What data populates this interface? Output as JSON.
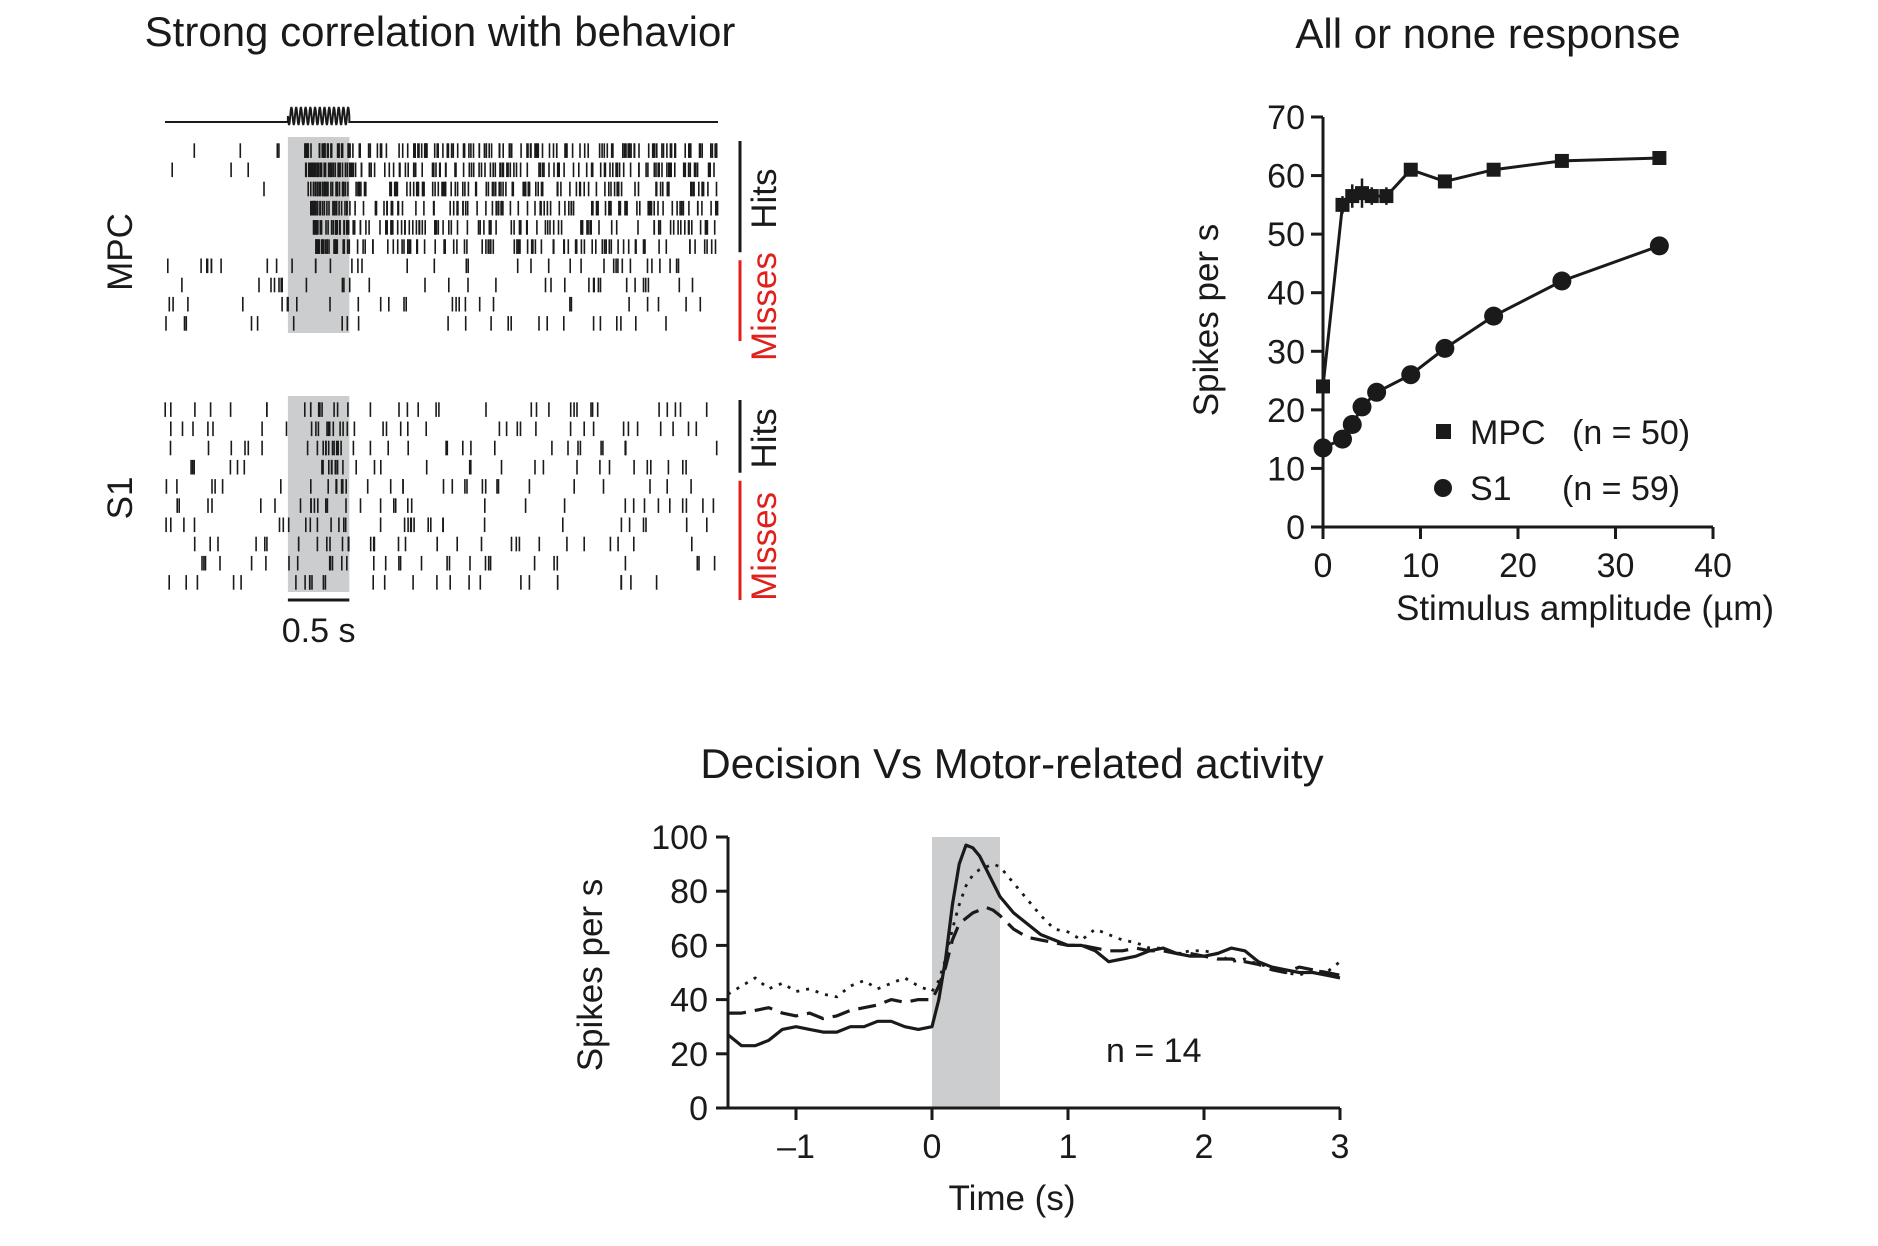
{
  "colors": {
    "ink": "#1a1a1a",
    "shade": "#cccdcf",
    "misses": "#e0201b"
  },
  "chart_data": [
    {
      "type": "raster",
      "title": "Strong correlation with behavior",
      "scale_bar_label": "0.5 s",
      "stimulus_period_s": [
        0,
        0.5
      ],
      "time_window_s": [
        -1,
        3.5
      ],
      "panels": [
        {
          "name": "MPC",
          "group_labels": {
            "hits": "Hits",
            "misses": "Misses"
          },
          "n_hit_trials": 6,
          "n_miss_trials": 4,
          "hit_rates_hz": [
            4,
            3,
            1,
            0,
            0,
            0
          ],
          "hit_stim_rates_hz": [
            60,
            60,
            60,
            55,
            55,
            55
          ],
          "hit_post_rates_hz": [
            38,
            35,
            33,
            30,
            28,
            25
          ],
          "miss_rates_hz": [
            9,
            7,
            6,
            5
          ],
          "miss_stim_rates_hz": [
            8,
            6,
            5,
            5
          ],
          "miss_post_rates_hz": [
            8,
            7,
            6,
            5
          ]
        },
        {
          "name": "S1",
          "group_labels": {
            "hits": "Hits",
            "misses": "Misses"
          },
          "n_hit_trials": 4,
          "n_miss_trials": 6,
          "hit_rates_hz": [
            7,
            7,
            6,
            6
          ],
          "hit_stim_rates_hz": [
            18,
            20,
            22,
            20
          ],
          "hit_post_rates_hz": [
            7,
            7,
            6,
            6
          ],
          "miss_rates_hz": [
            6,
            6,
            6,
            6,
            6,
            5
          ],
          "miss_stim_rates_hz": [
            14,
            16,
            16,
            15,
            14,
            14
          ],
          "miss_post_rates_hz": [
            6,
            6,
            6,
            6,
            6,
            5
          ]
        }
      ]
    },
    {
      "type": "line",
      "title": "All or none response",
      "xlabel": "Stimulus amplitude (µm)",
      "ylabel": "Spikes per s",
      "xlim": [
        0,
        40
      ],
      "ylim": [
        0,
        70
      ],
      "xticks": [
        0,
        10,
        20,
        30,
        40
      ],
      "yticks": [
        0,
        10,
        20,
        30,
        40,
        50,
        60,
        70
      ],
      "legend_position": "bottom-right",
      "series": [
        {
          "name": "MPC",
          "n_label": "(n = 50)",
          "marker": "square",
          "x": [
            0,
            2,
            3,
            4,
            5,
            6.5,
            9,
            12.5,
            17.5,
            24.5,
            34.5
          ],
          "y": [
            24,
            55,
            56.5,
            57,
            56.5,
            56.5,
            61,
            59,
            61,
            62.5,
            63
          ],
          "errors": [
            0.5,
            1.5,
            2.0,
            2.5,
            1.5,
            1.5,
            1.0,
            1.0,
            1.0,
            0.8,
            0.8
          ]
        },
        {
          "name": "S1",
          "n_label": "(n = 59)",
          "marker": "circle",
          "x": [
            0,
            2,
            3,
            4,
            5.5,
            9,
            12.5,
            17.5,
            24.5,
            34.5
          ],
          "y": [
            13.5,
            15,
            17.5,
            20.5,
            23,
            26,
            30.5,
            36,
            42,
            48
          ]
        }
      ]
    },
    {
      "type": "line",
      "title": "Decision Vs Motor-related activity",
      "xlabel": "Time (s)",
      "ylabel": "Spikes per s",
      "xlim": [
        -1.5,
        3
      ],
      "ylim": [
        0,
        100
      ],
      "xticks": [
        -1,
        0,
        1,
        2,
        3
      ],
      "xtick_labels": [
        "–1",
        "0",
        "1",
        "2",
        "3"
      ],
      "yticks": [
        0,
        20,
        40,
        60,
        80,
        100
      ],
      "shaded_interval": [
        0,
        0.5
      ],
      "annotation": "n = 14",
      "series": [
        {
          "style": "solid",
          "x": [
            -1.5,
            -1.4,
            -1.3,
            -1.2,
            -1.1,
            -1.0,
            -0.9,
            -0.8,
            -0.7,
            -0.6,
            -0.5,
            -0.4,
            -0.3,
            -0.2,
            -0.1,
            0.0,
            0.05,
            0.1,
            0.15,
            0.2,
            0.25,
            0.3,
            0.35,
            0.4,
            0.45,
            0.5,
            0.6,
            0.7,
            0.8,
            0.9,
            1.0,
            1.1,
            1.2,
            1.3,
            1.4,
            1.5,
            1.6,
            1.7,
            1.8,
            1.9,
            2.0,
            2.1,
            2.2,
            2.3,
            2.4,
            2.5,
            2.6,
            2.7,
            2.8,
            2.9,
            3.0
          ],
          "y": [
            27,
            23,
            23,
            25,
            29,
            30,
            29,
            28,
            28,
            30,
            30,
            32,
            32,
            30,
            29,
            30,
            40,
            55,
            75,
            90,
            97,
            96,
            93,
            88,
            83,
            78,
            72,
            68,
            64,
            62,
            60,
            60,
            58,
            54,
            55,
            56,
            58,
            59,
            57,
            56,
            56,
            57,
            59,
            58,
            54,
            52,
            51,
            50,
            50,
            49,
            48
          ]
        },
        {
          "style": "dashed",
          "x": [
            -1.5,
            -1.4,
            -1.3,
            -1.2,
            -1.1,
            -1.0,
            -0.9,
            -0.8,
            -0.7,
            -0.6,
            -0.5,
            -0.4,
            -0.3,
            -0.2,
            -0.1,
            0.0,
            0.05,
            0.1,
            0.15,
            0.2,
            0.25,
            0.3,
            0.35,
            0.4,
            0.45,
            0.5,
            0.6,
            0.7,
            0.8,
            0.9,
            1.0,
            1.1,
            1.2,
            1.3,
            1.4,
            1.5,
            1.6,
            1.7,
            1.8,
            1.9,
            2.0,
            2.1,
            2.2,
            2.3,
            2.4,
            2.5,
            2.6,
            2.7,
            2.8,
            2.9,
            3.0
          ],
          "y": [
            35,
            35,
            36,
            37,
            35,
            34,
            35,
            33,
            34,
            36,
            37,
            38,
            40,
            39,
            40,
            40,
            45,
            52,
            62,
            68,
            70,
            72,
            73,
            74,
            73,
            71,
            66,
            63,
            62,
            61,
            60,
            60,
            59,
            58,
            58,
            59,
            58,
            58,
            57,
            57,
            56,
            55,
            55,
            54,
            53,
            51,
            50,
            52,
            51,
            50,
            49
          ]
        },
        {
          "style": "dotted",
          "x": [
            -1.5,
            -1.4,
            -1.3,
            -1.2,
            -1.1,
            -1.0,
            -0.9,
            -0.8,
            -0.7,
            -0.6,
            -0.5,
            -0.4,
            -0.3,
            -0.2,
            -0.1,
            0.0,
            0.05,
            0.1,
            0.15,
            0.2,
            0.25,
            0.3,
            0.35,
            0.4,
            0.45,
            0.5,
            0.6,
            0.7,
            0.8,
            0.9,
            1.0,
            1.1,
            1.2,
            1.3,
            1.4,
            1.5,
            1.6,
            1.7,
            1.8,
            1.9,
            2.0,
            2.1,
            2.2,
            2.3,
            2.4,
            2.5,
            2.6,
            2.7,
            2.8,
            2.9,
            3.0
          ],
          "y": [
            42,
            45,
            48,
            44,
            46,
            43,
            44,
            42,
            41,
            45,
            47,
            44,
            46,
            48,
            45,
            43,
            47,
            55,
            66,
            75,
            82,
            86,
            88,
            89,
            90,
            89,
            83,
            77,
            71,
            66,
            65,
            62,
            66,
            64,
            62,
            61,
            59,
            59,
            57,
            58,
            58,
            57,
            54,
            55,
            53,
            52,
            50,
            49,
            51,
            50,
            54
          ]
        }
      ]
    }
  ]
}
